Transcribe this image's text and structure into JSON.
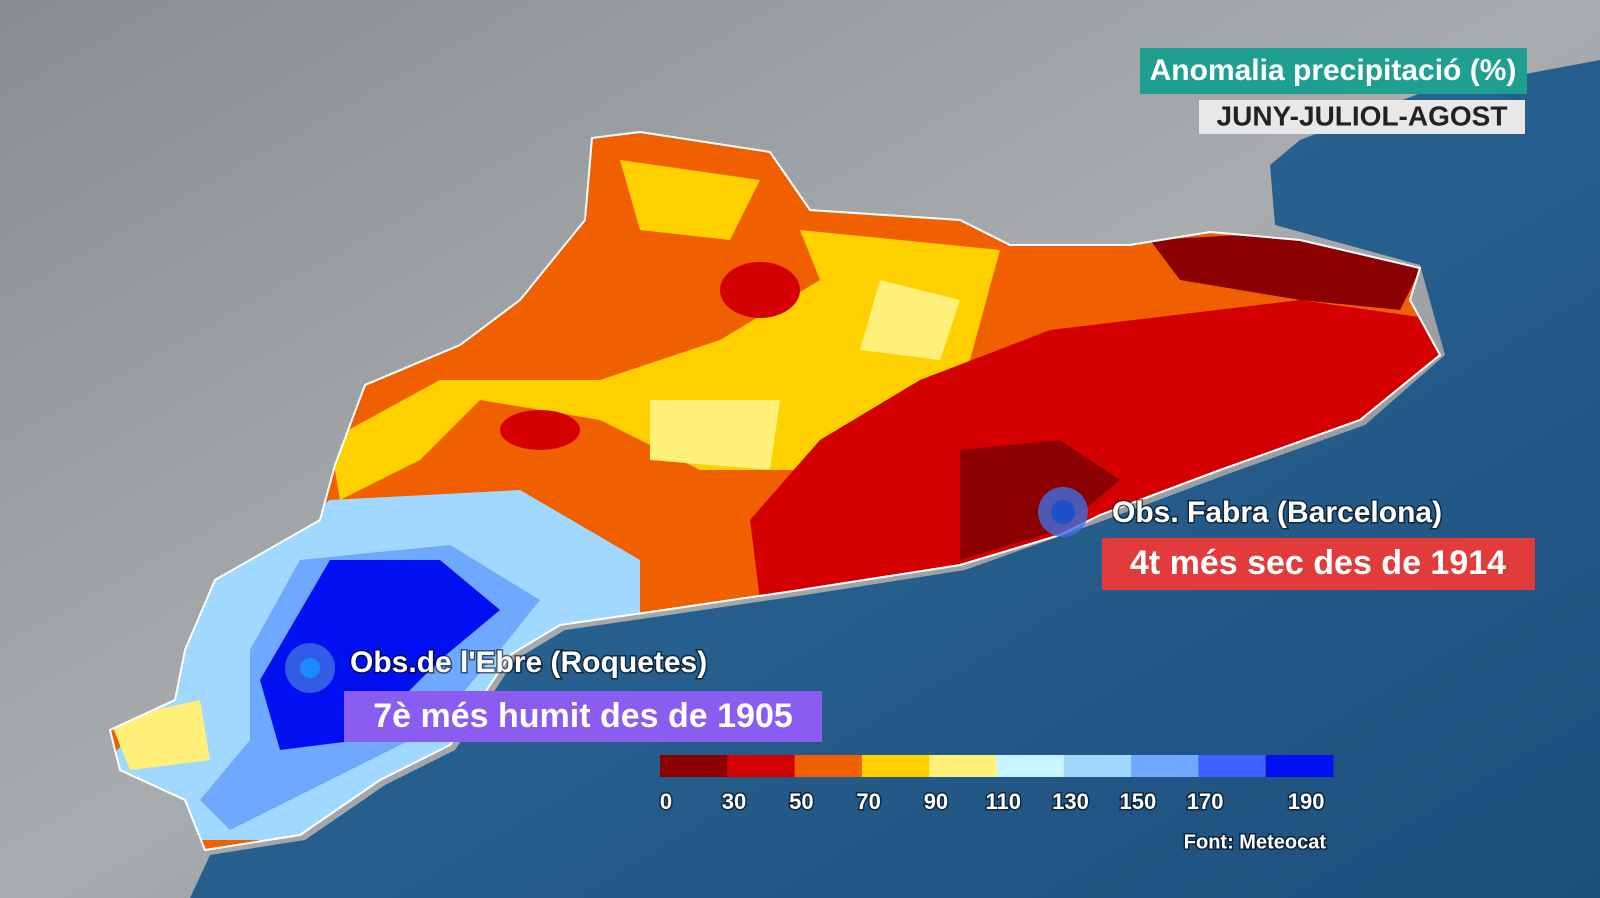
{
  "header": {
    "title": "Anomalia precipitació (%)",
    "subtitle": "JUNY-JULIOL-AGOST"
  },
  "stations": [
    {
      "label": "Obs. Fabra (Barcelona)",
      "note": "4t més sec des de 1914",
      "color": "#e23b3b"
    },
    {
      "label": "Obs.de l'Ebre (Roquetes)",
      "note": "7è més humit des de 1905",
      "color": "#8a5cf0"
    }
  ],
  "legend": {
    "colors": [
      "#8b0000",
      "#d40000",
      "#f06000",
      "#ffd000",
      "#fff07a",
      "#c8f4ff",
      "#a0d8ff",
      "#6fa8ff",
      "#4060ff",
      "#0010f0"
    ],
    "ticks": [
      0,
      30,
      50,
      70,
      90,
      110,
      130,
      150,
      170,
      190
    ]
  },
  "source": "Font: Meteocat"
}
